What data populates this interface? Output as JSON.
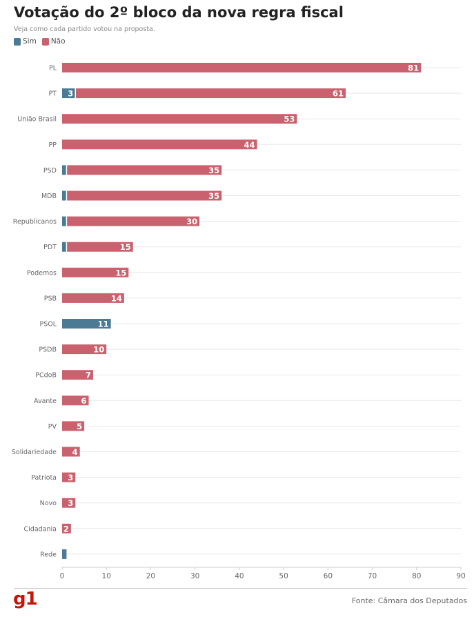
{
  "colors": {
    "sim": "#4a7a94",
    "nao": "#c9626e"
  },
  "legend": {
    "sim": "Sim",
    "nao": "Não"
  },
  "footer": {
    "logo": "g1",
    "source": "Fonte: Câmara dos Deputados"
  },
  "chart_data": {
    "type": "bar",
    "orientation": "horizontal",
    "stacked": true,
    "title": "Votação do 2º bloco da nova regra fiscal",
    "subtitle": "Veja como cada partido votou na proposta.",
    "categories": [
      "PL",
      "PT",
      "União Brasil",
      "PP",
      "PSD",
      "MDB",
      "Republicanos",
      "PDT",
      "Podemos",
      "PSB",
      "PSOL",
      "PSDB",
      "PCdoB",
      "Avante",
      "PV",
      "Solidariedade",
      "Patriota",
      "Novo",
      "Cidadania",
      "Rede"
    ],
    "series": [
      {
        "name": "Sim",
        "values": [
          0,
          3,
          0,
          0,
          1,
          1,
          1,
          1,
          0,
          0,
          11,
          0,
          0,
          0,
          0,
          0,
          0,
          0,
          0,
          1
        ],
        "labels": [
          "",
          "3",
          "",
          "",
          "",
          "",
          "",
          "",
          "",
          "",
          "11",
          "",
          "",
          "",
          "",
          "",
          "",
          "",
          "",
          ""
        ]
      },
      {
        "name": "Não",
        "values": [
          81,
          61,
          53,
          44,
          35,
          35,
          30,
          15,
          15,
          14,
          0,
          10,
          7,
          6,
          5,
          4,
          3,
          3,
          2,
          0
        ],
        "labels": [
          "81",
          "61",
          "53",
          "44",
          "35",
          "35",
          "30",
          "15",
          "15",
          "14",
          "",
          "10",
          "7",
          "6",
          "5",
          "4",
          "3",
          "3",
          "2",
          ""
        ]
      }
    ],
    "xlim": [
      0,
      90
    ],
    "xticks": [
      0,
      10,
      20,
      30,
      40,
      50,
      60,
      70,
      80,
      90
    ],
    "grid": true,
    "legend_position": "top-left"
  }
}
